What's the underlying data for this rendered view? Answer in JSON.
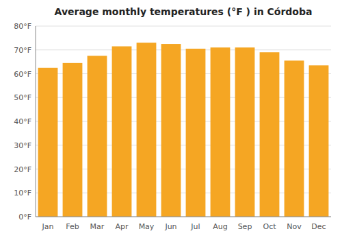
{
  "chart_data": {
    "type": "bar",
    "title": "Average monthly temperatures (°F ) in Córdoba",
    "categories": [
      "Jan",
      "Feb",
      "Mar",
      "Apr",
      "May",
      "Jun",
      "Jul",
      "Aug",
      "Sep",
      "Oct",
      "Nov",
      "Dec"
    ],
    "values": [
      62.5,
      64.5,
      67.5,
      71.5,
      73.0,
      72.5,
      70.5,
      71.0,
      71.0,
      69.0,
      65.5,
      63.5
    ],
    "color": "#F5A623",
    "ylim": [
      0,
      80
    ],
    "yticks": [
      {
        "value": 0,
        "label": "0°F"
      },
      {
        "value": 10,
        "label": "10°F"
      },
      {
        "value": 20,
        "label": "20°F"
      },
      {
        "value": 30,
        "label": "30°F"
      },
      {
        "value": 40,
        "label": "40°F"
      },
      {
        "value": 50,
        "label": "50°F"
      },
      {
        "value": 60,
        "label": "60°F"
      },
      {
        "value": 70,
        "label": "70°F"
      },
      {
        "value": 80,
        "label": "80°F"
      }
    ],
    "grid": true
  }
}
